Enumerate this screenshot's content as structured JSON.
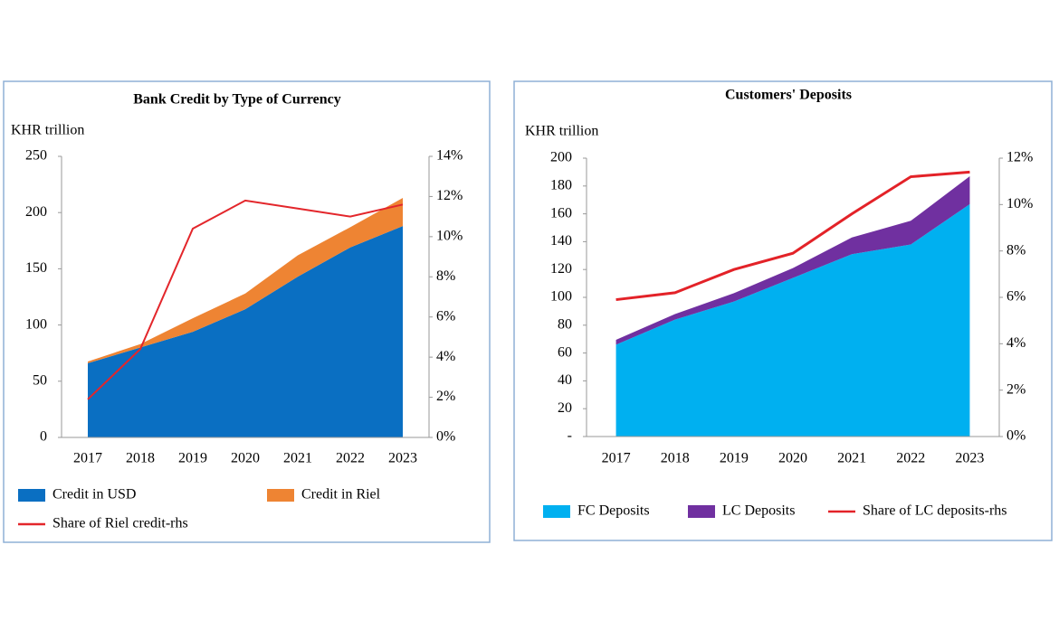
{
  "chart_data": [
    {
      "type": "area",
      "title": "Bank Credit by Type of Currency",
      "y_label": "KHR trillion",
      "categories": [
        "2017",
        "2018",
        "2019",
        "2020",
        "2021",
        "2022",
        "2023"
      ],
      "series": [
        {
          "name": "Credit in USD",
          "color": "#0a6fc2",
          "values": [
            66,
            80,
            94,
            114,
            143,
            169,
            188
          ]
        },
        {
          "name": "Credit in Riel",
          "color": "#ee8433",
          "values": [
            1.5,
            3,
            12,
            14,
            19,
            18,
            25
          ]
        },
        {
          "name": "Share of Riel credit-rhs",
          "color": "#e3262b",
          "type": "line",
          "axis": "y2",
          "values": [
            1.9,
            4.4,
            10.4,
            11.8,
            11.4,
            11.0,
            11.6
          ]
        }
      ],
      "ylim": [
        0,
        250
      ],
      "yticks": [
        0,
        50,
        100,
        150,
        200,
        250
      ],
      "y2lim": [
        0,
        14
      ],
      "y2ticks": [
        {
          "value": 0,
          "label": "0%"
        },
        {
          "value": 2,
          "label": "2%"
        },
        {
          "value": 4,
          "label": "4%"
        },
        {
          "value": 6,
          "label": "6%"
        },
        {
          "value": 8,
          "label": "8%"
        },
        {
          "value": 10,
          "label": "10%"
        },
        {
          "value": 12,
          "label": "12%"
        },
        {
          "value": 14,
          "label": "14%"
        }
      ],
      "grid": false
    },
    {
      "type": "area",
      "title": "Customers' Deposits",
      "y_label": "KHR trillion",
      "categories": [
        "2017",
        "2018",
        "2019",
        "2020",
        "2021",
        "2022",
        "2023"
      ],
      "series": [
        {
          "name": "FC Deposits",
          "color": "#00b0f0",
          "values": [
            66,
            84,
            97,
            114,
            131,
            138,
            167
          ]
        },
        {
          "name": "LC Deposits",
          "color": "#7030a0",
          "values": [
            3.5,
            4,
            6,
            7,
            12,
            17,
            20
          ]
        },
        {
          "name": "Share of LC deposits-rhs",
          "color": "#e32228",
          "type": "line",
          "axis": "y2",
          "values": [
            5.9,
            6.2,
            7.2,
            7.9,
            9.6,
            11.2,
            11.4
          ]
        }
      ],
      "ylim": [
        0,
        200
      ],
      "yticks": [
        {
          "value": 0,
          "label": "-"
        },
        20,
        40,
        60,
        80,
        100,
        120,
        140,
        160,
        180,
        200
      ],
      "y2lim": [
        0,
        12
      ],
      "y2ticks": [
        {
          "value": 0,
          "label": "0%"
        },
        {
          "value": 2,
          "label": "2%"
        },
        {
          "value": 4,
          "label": "4%"
        },
        {
          "value": 6,
          "label": "6%"
        },
        {
          "value": 8,
          "label": "8%"
        },
        {
          "value": 10,
          "label": "10%"
        },
        {
          "value": 12,
          "label": "12%"
        }
      ],
      "grid": false
    }
  ]
}
